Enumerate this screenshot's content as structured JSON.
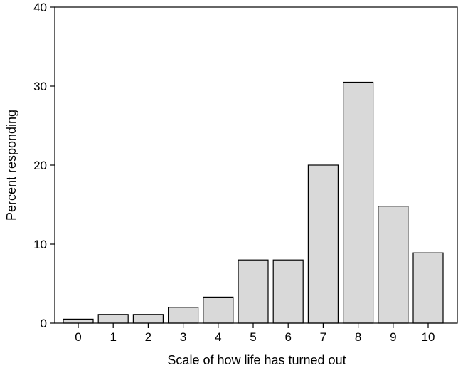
{
  "chart_data": {
    "type": "bar",
    "title": "",
    "xlabel": "Scale of how life has turned out",
    "ylabel": "Percent responding",
    "categories": [
      "0",
      "1",
      "2",
      "3",
      "4",
      "5",
      "6",
      "7",
      "8",
      "9",
      "10"
    ],
    "values": [
      0.5,
      1.1,
      1.1,
      2.0,
      3.3,
      8.0,
      8.0,
      20.0,
      30.5,
      14.8,
      8.9
    ],
    "ylim": [
      0,
      40
    ],
    "yticks": [
      "0",
      "10",
      "20",
      "30",
      "40"
    ],
    "grid": false,
    "legend": "none",
    "colors": {
      "bar_fill": "#d9d9d9",
      "bar_stroke": "#000000",
      "axis": "#000000"
    }
  }
}
